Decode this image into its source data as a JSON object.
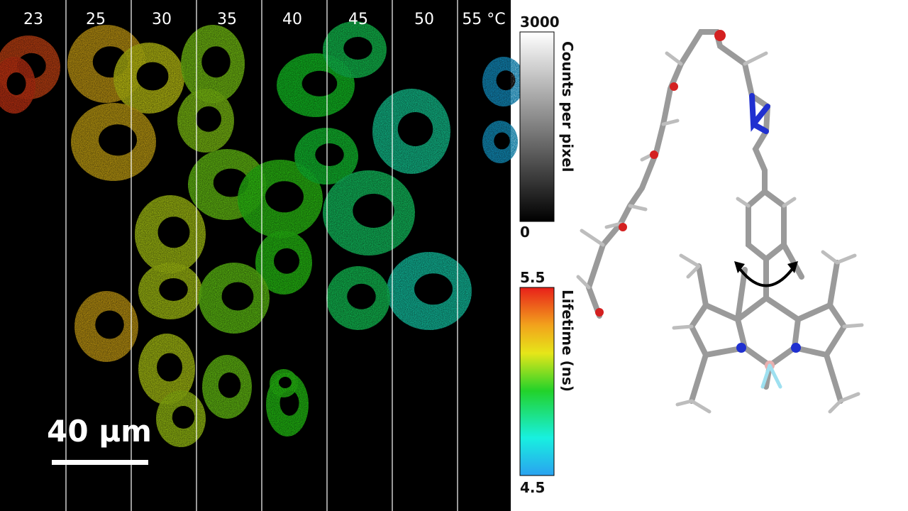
{
  "temperatures": [
    "23",
    "25",
    "30",
    "35",
    "40",
    "45",
    "50",
    "55 °C"
  ],
  "scale_bar": "40 µm",
  "intensity_bar": {
    "max_label": "3000",
    "min_label": "0",
    "title": "Counts per pixel"
  },
  "lifetime_bar": {
    "max_label": "5.5",
    "min_label": "4.5",
    "title": "Lifetime (ns)"
  }
}
